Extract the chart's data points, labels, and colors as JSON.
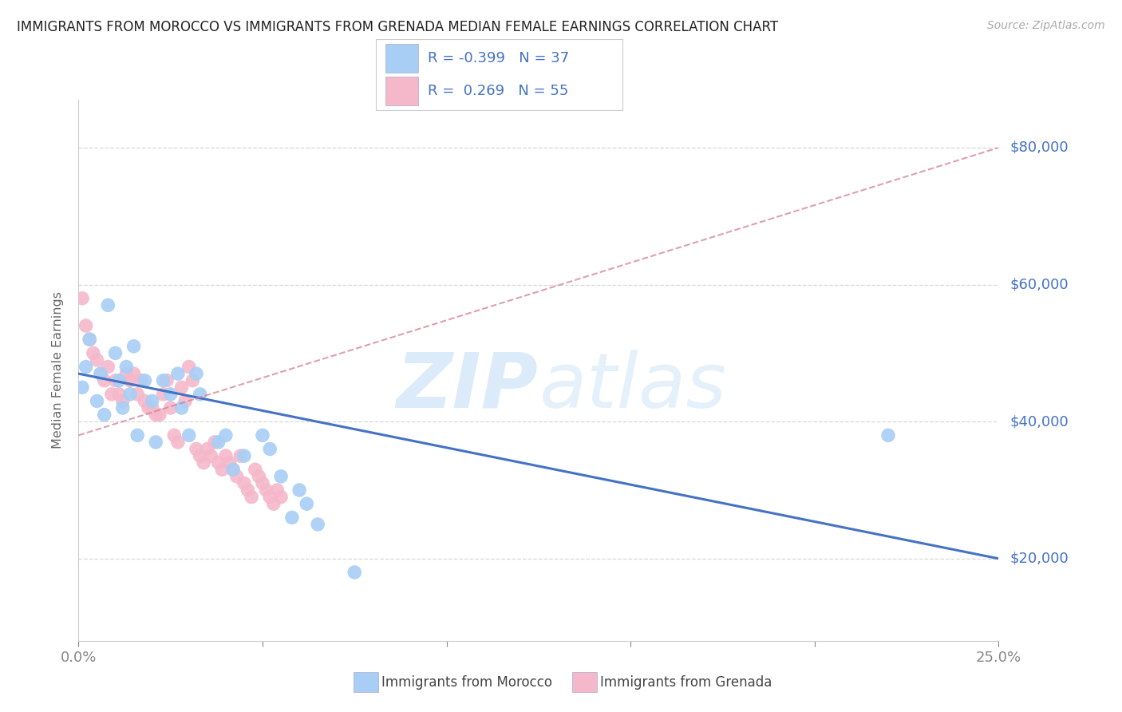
{
  "title": "IMMIGRANTS FROM MOROCCO VS IMMIGRANTS FROM GRENADA MEDIAN FEMALE EARNINGS CORRELATION CHART",
  "source": "Source: ZipAtlas.com",
  "ylabel": "Median Female Earnings",
  "xmin": 0.0,
  "xmax": 0.25,
  "ymin": 8000,
  "ymax": 87000,
  "morocco_color": "#a8cef5",
  "grenada_color": "#f5b8cb",
  "morocco_line_color": "#4472C4",
  "grenada_line_color": "#d48090",
  "legend_text_color": "#4472C4",
  "ytick_vals": [
    20000,
    40000,
    60000,
    80000
  ],
  "ytick_labels": [
    "$20,000",
    "$40,000",
    "$60,000",
    "$80,000"
  ],
  "xtick_vals": [
    0.0,
    0.05,
    0.1,
    0.15,
    0.2,
    0.25
  ],
  "xtick_labels": [
    "0.0%",
    "",
    "",
    "",
    "",
    "25.0%"
  ],
  "morocco_x": [
    0.001,
    0.002,
    0.003,
    0.005,
    0.006,
    0.007,
    0.008,
    0.01,
    0.011,
    0.012,
    0.013,
    0.014,
    0.015,
    0.016,
    0.018,
    0.02,
    0.021,
    0.023,
    0.025,
    0.027,
    0.028,
    0.03,
    0.032,
    0.033,
    0.038,
    0.04,
    0.042,
    0.045,
    0.05,
    0.052,
    0.055,
    0.058,
    0.06,
    0.062,
    0.065,
    0.075,
    0.22
  ],
  "morocco_y": [
    45000,
    48000,
    52000,
    43000,
    47000,
    41000,
    57000,
    50000,
    46000,
    42000,
    48000,
    44000,
    51000,
    38000,
    46000,
    43000,
    37000,
    46000,
    44000,
    47000,
    42000,
    38000,
    47000,
    44000,
    37000,
    38000,
    33000,
    35000,
    38000,
    36000,
    32000,
    26000,
    30000,
    28000,
    25000,
    18000,
    38000
  ],
  "grenada_x": [
    0.001,
    0.002,
    0.003,
    0.004,
    0.005,
    0.006,
    0.007,
    0.008,
    0.009,
    0.01,
    0.011,
    0.012,
    0.013,
    0.014,
    0.015,
    0.016,
    0.017,
    0.018,
    0.019,
    0.02,
    0.021,
    0.022,
    0.023,
    0.024,
    0.025,
    0.026,
    0.027,
    0.028,
    0.029,
    0.03,
    0.031,
    0.032,
    0.033,
    0.034,
    0.035,
    0.036,
    0.037,
    0.038,
    0.039,
    0.04,
    0.041,
    0.042,
    0.043,
    0.044,
    0.045,
    0.046,
    0.047,
    0.048,
    0.049,
    0.05,
    0.051,
    0.052,
    0.053,
    0.054,
    0.055
  ],
  "grenada_y": [
    58000,
    54000,
    52000,
    50000,
    49000,
    47000,
    46000,
    48000,
    44000,
    46000,
    44000,
    43000,
    47000,
    46000,
    47000,
    44000,
    46000,
    43000,
    42000,
    42000,
    41000,
    41000,
    44000,
    46000,
    42000,
    38000,
    37000,
    45000,
    43000,
    48000,
    46000,
    36000,
    35000,
    34000,
    36000,
    35000,
    37000,
    34000,
    33000,
    35000,
    34000,
    33000,
    32000,
    35000,
    31000,
    30000,
    29000,
    33000,
    32000,
    31000,
    30000,
    29000,
    28000,
    30000,
    29000
  ],
  "morocco_trend_x": [
    0.0,
    0.25
  ],
  "morocco_trend_y": [
    47000,
    20000
  ],
  "grenada_trend_x": [
    0.0,
    0.25
  ],
  "grenada_trend_y": [
    38000,
    80000
  ],
  "grid_color": "#d8d8d8",
  "bg_color": "#ffffff",
  "label_color": "#4472C4",
  "axis_color": "#cccccc"
}
